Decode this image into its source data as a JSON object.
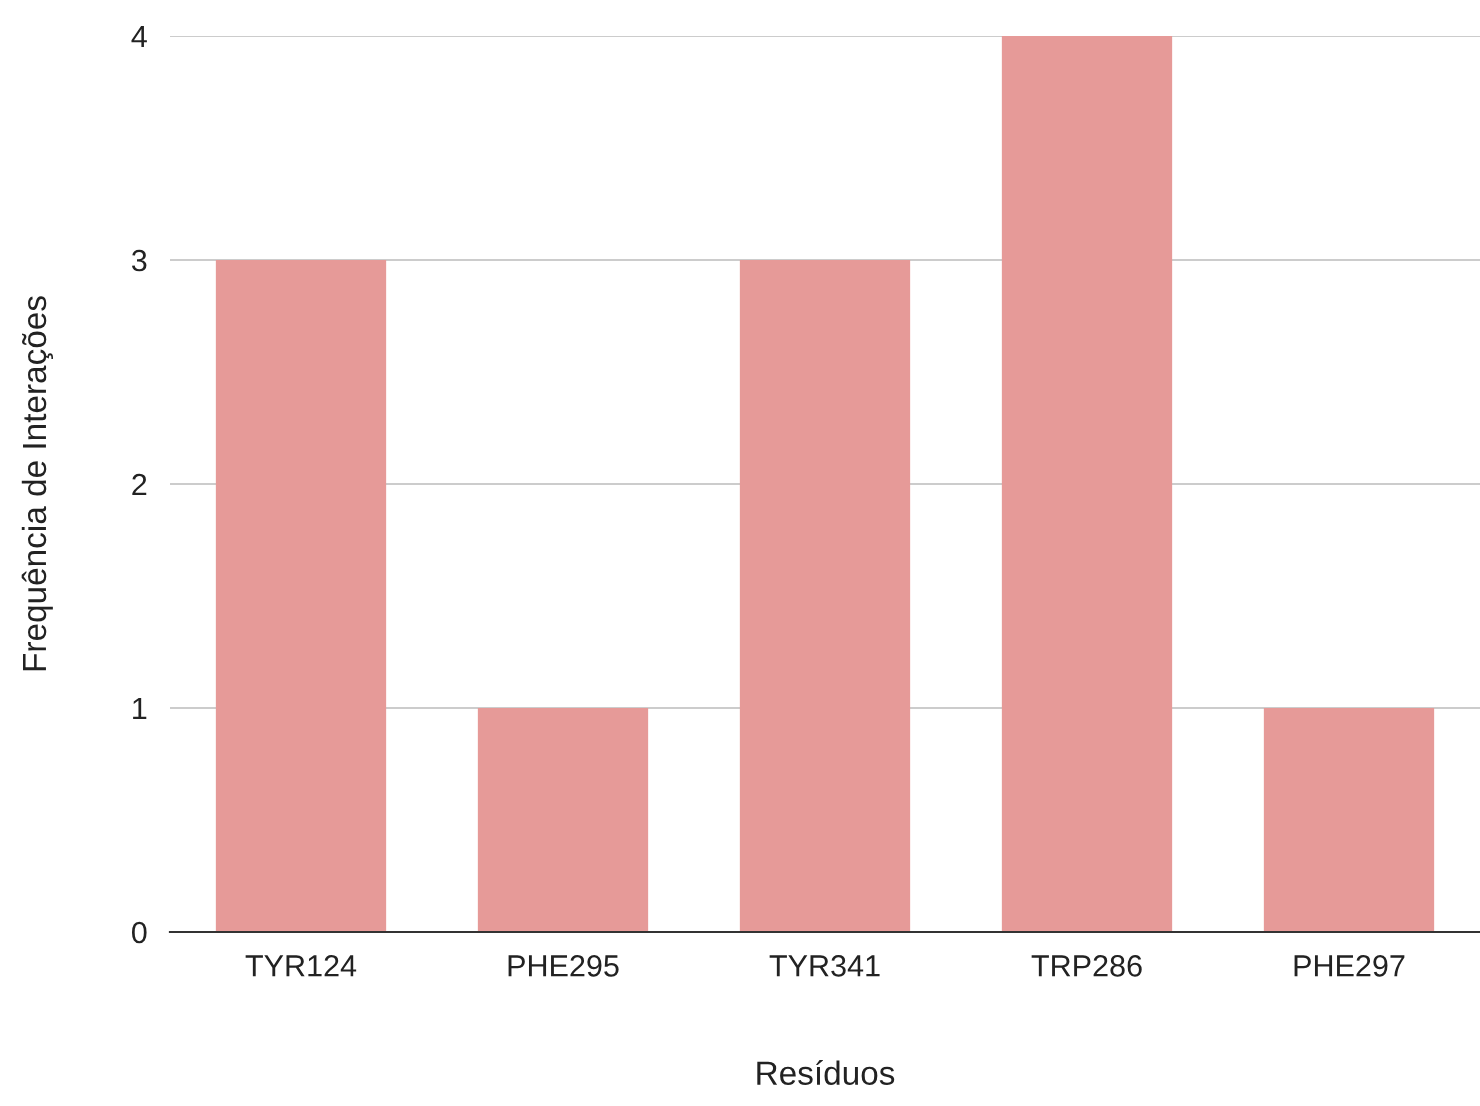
{
  "chart_data": {
    "type": "bar",
    "xlabel": "Resíduos",
    "ylabel": "Frequência de Interações",
    "categories": [
      "TYR124",
      "PHE295",
      "TYR341",
      "TRP286",
      "PHE297"
    ],
    "values": [
      3,
      1,
      3,
      4,
      1
    ],
    "color": "#e69a98",
    "ylim": [
      0,
      4
    ],
    "yticks": [
      0,
      1,
      2,
      3,
      4
    ],
    "grid": "y"
  }
}
